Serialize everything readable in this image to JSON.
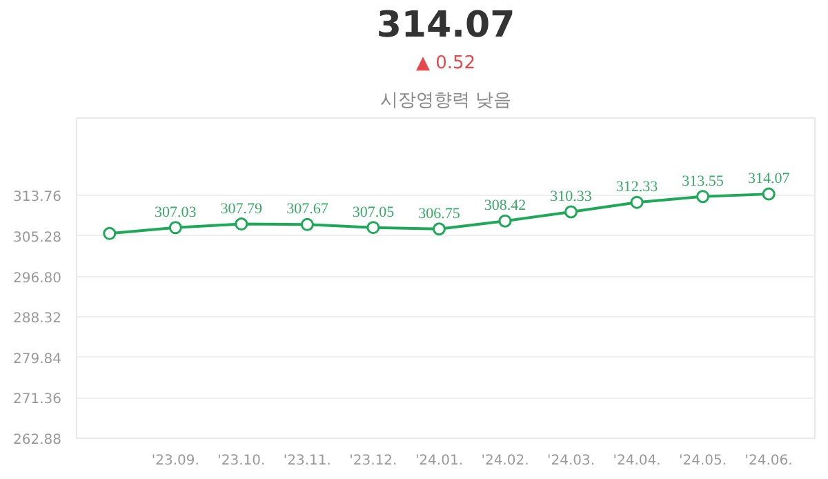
{
  "chart_data": {
    "type": "line",
    "title": "314.07",
    "subtitle": "▲ 0.52",
    "annotations": [
      "시장영향력 낮음"
    ],
    "categories": [
      null,
      "'23.09.",
      "'23.10.",
      "'23.11.",
      "'23.12.",
      "'24.01.",
      "'24.02.",
      "'24.03.",
      "'24.04.",
      "'24.05.",
      "'24.06."
    ],
    "series": [
      {
        "color": "#1fa85a",
        "values": [
          305.8,
          307.03,
          307.79,
          307.67,
          307.05,
          306.75,
          308.42,
          310.33,
          312.33,
          313.55,
          314.07
        ],
        "value_labels": [
          null,
          "307.03",
          "307.79",
          "307.67",
          "307.05",
          "306.75",
          "308.42",
          "310.33",
          "312.33",
          "313.55",
          "314.07"
        ]
      }
    ],
    "ylim": [
      262.88,
      330
    ],
    "yticks": [
      "262.88",
      "271.36",
      "279.84",
      "288.32",
      "296.80",
      "305.28",
      "313.76"
    ],
    "grid": "y",
    "marker": "circle",
    "line_style": "solid"
  }
}
